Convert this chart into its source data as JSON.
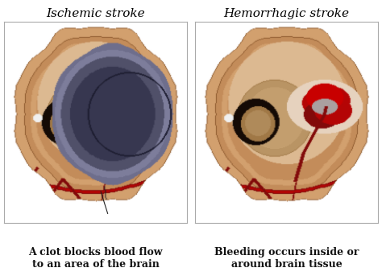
{
  "bg_color": "#ffffff",
  "left_title": "Ischemic stroke",
  "right_title": "Hemorrhagic stroke",
  "left_caption": "A clot blocks blood flow\nto an area of the brain",
  "right_caption": "Bleeding occurs inside or\naround brain tissue",
  "title_fontsize": 11,
  "caption_fontsize": 9,
  "skin_light": "#deb898",
  "skin_mid": "#c9956a",
  "skin_dark": "#a06840",
  "inner_light": "#c8a878",
  "inner_dark": "#6a4820",
  "black_region": "#1a1008",
  "infarct_light": "#9090aa",
  "infarct_dark": "#505068",
  "infarct_edge": "#282840",
  "blood_color": "#8b0000",
  "blood_bright": "#cc0000",
  "box_edge": "#aaaaaa",
  "ann_color": "#222222",
  "caption_color": "#111111"
}
